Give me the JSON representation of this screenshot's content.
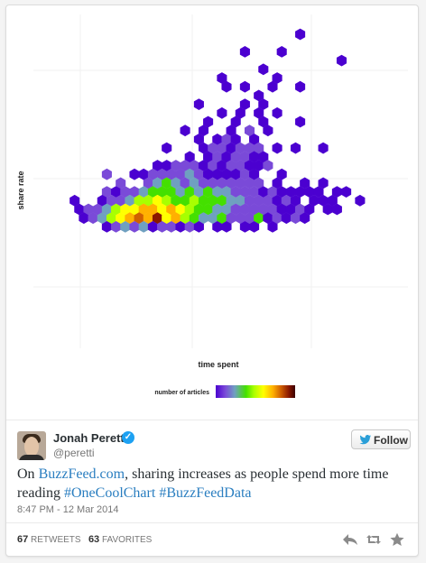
{
  "chart_data": {
    "type": "heatmap",
    "chart_kind": "hexbin",
    "xlabel": "time spent",
    "ylabel": "share rate",
    "legend_title": "number of articles",
    "grid": true,
    "legend_placement": "bottom-center",
    "colorscale": [
      "#4b00d0",
      "#7a4ad8",
      "#6fa0c0",
      "#44e000",
      "#a8ff00",
      "#ffff00",
      "#ffb000",
      "#d06000",
      "#8a1800"
    ],
    "cells": [
      {
        "row": 0,
        "col": 28,
        "level": 0
      },
      {
        "row": 2,
        "col": 22,
        "level": 0
      },
      {
        "row": 2,
        "col": 26,
        "level": 0
      },
      {
        "row": 3,
        "col": 32,
        "level": 0
      },
      {
        "row": 4,
        "col": 24,
        "level": 0
      },
      {
        "row": 5,
        "col": 19,
        "level": 0
      },
      {
        "row": 5,
        "col": 25,
        "level": 0
      },
      {
        "row": 6,
        "col": 20,
        "level": 0
      },
      {
        "row": 6,
        "col": 22,
        "level": 0
      },
      {
        "row": 6,
        "col": 25,
        "level": 0
      },
      {
        "row": 6,
        "col": 28,
        "level": 0
      },
      {
        "row": 7,
        "col": 23,
        "level": 0
      },
      {
        "row": 8,
        "col": 17,
        "level": 0
      },
      {
        "row": 8,
        "col": 22,
        "level": 0
      },
      {
        "row": 8,
        "col": 24,
        "level": 0
      },
      {
        "row": 9,
        "col": 19,
        "level": 0
      },
      {
        "row": 9,
        "col": 21,
        "level": 0
      },
      {
        "row": 9,
        "col": 23,
        "level": 0
      },
      {
        "row": 9,
        "col": 25,
        "level": 0
      },
      {
        "row": 10,
        "col": 18,
        "level": 0
      },
      {
        "row": 10,
        "col": 21,
        "level": 0
      },
      {
        "row": 10,
        "col": 24,
        "level": 0
      },
      {
        "row": 10,
        "col": 28,
        "level": 0
      },
      {
        "row": 11,
        "col": 15,
        "level": 0
      },
      {
        "row": 11,
        "col": 17,
        "level": 0
      },
      {
        "row": 11,
        "col": 20,
        "level": 0
      },
      {
        "row": 11,
        "col": 22,
        "level": 1
      },
      {
        "row": 11,
        "col": 24,
        "level": 0
      },
      {
        "row": 12,
        "col": 17,
        "level": 0
      },
      {
        "row": 12,
        "col": 19,
        "level": 0
      },
      {
        "row": 12,
        "col": 20,
        "level": 1
      },
      {
        "row": 12,
        "col": 21,
        "level": 0
      },
      {
        "row": 12,
        "col": 23,
        "level": 0
      },
      {
        "row": 13,
        "col": 13,
        "level": 0
      },
      {
        "row": 13,
        "col": 17,
        "level": 0
      },
      {
        "row": 13,
        "col": 18,
        "level": 1
      },
      {
        "row": 13,
        "col": 19,
        "level": 1
      },
      {
        "row": 13,
        "col": 20,
        "level": 0
      },
      {
        "row": 13,
        "col": 21,
        "level": 1
      },
      {
        "row": 13,
        "col": 22,
        "level": 1
      },
      {
        "row": 13,
        "col": 23,
        "level": 1
      },
      {
        "row": 13,
        "col": 25,
        "level": 0
      },
      {
        "row": 13,
        "col": 27,
        "level": 0
      },
      {
        "row": 13,
        "col": 30,
        "level": 0
      },
      {
        "row": 14,
        "col": 16,
        "level": 0
      },
      {
        "row": 14,
        "col": 18,
        "level": 0
      },
      {
        "row": 14,
        "col": 19,
        "level": 1
      },
      {
        "row": 14,
        "col": 20,
        "level": 0
      },
      {
        "row": 14,
        "col": 21,
        "level": 1
      },
      {
        "row": 14,
        "col": 22,
        "level": 1
      },
      {
        "row": 14,
        "col": 23,
        "level": 0
      },
      {
        "row": 14,
        "col": 24,
        "level": 0
      },
      {
        "row": 15,
        "col": 12,
        "level": 0
      },
      {
        "row": 15,
        "col": 13,
        "level": 0
      },
      {
        "row": 15,
        "col": 14,
        "level": 1
      },
      {
        "row": 15,
        "col": 15,
        "level": 1
      },
      {
        "row": 15,
        "col": 16,
        "level": 1
      },
      {
        "row": 15,
        "col": 17,
        "level": 0
      },
      {
        "row": 15,
        "col": 18,
        "level": 1
      },
      {
        "row": 15,
        "col": 19,
        "level": 0
      },
      {
        "row": 15,
        "col": 20,
        "level": 1
      },
      {
        "row": 15,
        "col": 21,
        "level": 1
      },
      {
        "row": 15,
        "col": 22,
        "level": 0
      },
      {
        "row": 15,
        "col": 23,
        "level": 0
      },
      {
        "row": 15,
        "col": 24,
        "level": 1
      },
      {
        "row": 16,
        "col": 7,
        "level": 1
      },
      {
        "row": 16,
        "col": 10,
        "level": 0
      },
      {
        "row": 16,
        "col": 11,
        "level": 0
      },
      {
        "row": 16,
        "col": 12,
        "level": 1
      },
      {
        "row": 16,
        "col": 13,
        "level": 1
      },
      {
        "row": 16,
        "col": 14,
        "level": 1
      },
      {
        "row": 16,
        "col": 15,
        "level": 1
      },
      {
        "row": 16,
        "col": 16,
        "level": 2
      },
      {
        "row": 16,
        "col": 17,
        "level": 1
      },
      {
        "row": 16,
        "col": 18,
        "level": 0
      },
      {
        "row": 16,
        "col": 19,
        "level": 0
      },
      {
        "row": 16,
        "col": 20,
        "level": 0
      },
      {
        "row": 16,
        "col": 21,
        "level": 0
      },
      {
        "row": 16,
        "col": 22,
        "level": 1
      },
      {
        "row": 16,
        "col": 23,
        "level": 0
      },
      {
        "row": 16,
        "col": 26,
        "level": 0
      },
      {
        "row": 17,
        "col": 8,
        "level": 1
      },
      {
        "row": 17,
        "col": 11,
        "level": 1
      },
      {
        "row": 17,
        "col": 12,
        "level": 2
      },
      {
        "row": 17,
        "col": 13,
        "level": 3
      },
      {
        "row": 17,
        "col": 14,
        "level": 2
      },
      {
        "row": 17,
        "col": 15,
        "level": 1
      },
      {
        "row": 17,
        "col": 16,
        "level": 2
      },
      {
        "row": 17,
        "col": 17,
        "level": 1
      },
      {
        "row": 17,
        "col": 18,
        "level": 1
      },
      {
        "row": 17,
        "col": 19,
        "level": 1
      },
      {
        "row": 17,
        "col": 20,
        "level": 1
      },
      {
        "row": 17,
        "col": 21,
        "level": 1
      },
      {
        "row": 17,
        "col": 22,
        "level": 1
      },
      {
        "row": 17,
        "col": 23,
        "level": 1
      },
      {
        "row": 17,
        "col": 25,
        "level": 0
      },
      {
        "row": 17,
        "col": 28,
        "level": 0
      },
      {
        "row": 17,
        "col": 30,
        "level": 0
      },
      {
        "row": 18,
        "col": 7,
        "level": 1
      },
      {
        "row": 18,
        "col": 8,
        "level": 0
      },
      {
        "row": 18,
        "col": 9,
        "level": 1
      },
      {
        "row": 18,
        "col": 10,
        "level": 1
      },
      {
        "row": 18,
        "col": 11,
        "level": 2
      },
      {
        "row": 18,
        "col": 12,
        "level": 3
      },
      {
        "row": 18,
        "col": 13,
        "level": 3
      },
      {
        "row": 18,
        "col": 14,
        "level": 3
      },
      {
        "row": 18,
        "col": 15,
        "level": 2
      },
      {
        "row": 18,
        "col": 16,
        "level": 3
      },
      {
        "row": 18,
        "col": 17,
        "level": 2
      },
      {
        "row": 18,
        "col": 18,
        "level": 3
      },
      {
        "row": 18,
        "col": 19,
        "level": 2
      },
      {
        "row": 18,
        "col": 20,
        "level": 2
      },
      {
        "row": 18,
        "col": 21,
        "level": 1
      },
      {
        "row": 18,
        "col": 22,
        "level": 1
      },
      {
        "row": 18,
        "col": 23,
        "level": 1
      },
      {
        "row": 18,
        "col": 24,
        "level": 0
      },
      {
        "row": 18,
        "col": 25,
        "level": 1
      },
      {
        "row": 18,
        "col": 26,
        "level": 0
      },
      {
        "row": 18,
        "col": 27,
        "level": 0
      },
      {
        "row": 18,
        "col": 28,
        "level": 0
      },
      {
        "row": 18,
        "col": 29,
        "level": 0
      },
      {
        "row": 18,
        "col": 30,
        "level": 0
      },
      {
        "row": 18,
        "col": 32,
        "level": 0
      },
      {
        "row": 18,
        "col": 33,
        "level": 0
      },
      {
        "row": 19,
        "col": 3,
        "level": 0
      },
      {
        "row": 19,
        "col": 6,
        "level": 0
      },
      {
        "row": 19,
        "col": 7,
        "level": 1
      },
      {
        "row": 19,
        "col": 8,
        "level": 1
      },
      {
        "row": 19,
        "col": 9,
        "level": 2
      },
      {
        "row": 19,
        "col": 10,
        "level": 4
      },
      {
        "row": 19,
        "col": 11,
        "level": 4
      },
      {
        "row": 19,
        "col": 12,
        "level": 5
      },
      {
        "row": 19,
        "col": 13,
        "level": 4
      },
      {
        "row": 19,
        "col": 14,
        "level": 3
      },
      {
        "row": 19,
        "col": 15,
        "level": 3
      },
      {
        "row": 19,
        "col": 16,
        "level": 4
      },
      {
        "row": 19,
        "col": 17,
        "level": 3
      },
      {
        "row": 19,
        "col": 18,
        "level": 3
      },
      {
        "row": 19,
        "col": 19,
        "level": 3
      },
      {
        "row": 19,
        "col": 20,
        "level": 2
      },
      {
        "row": 19,
        "col": 21,
        "level": 2
      },
      {
        "row": 19,
        "col": 22,
        "level": 1
      },
      {
        "row": 19,
        "col": 23,
        "level": 1
      },
      {
        "row": 19,
        "col": 24,
        "level": 1
      },
      {
        "row": 19,
        "col": 25,
        "level": 0
      },
      {
        "row": 19,
        "col": 26,
        "level": 1
      },
      {
        "row": 19,
        "col": 27,
        "level": 0
      },
      {
        "row": 19,
        "col": 29,
        "level": 0
      },
      {
        "row": 19,
        "col": 30,
        "level": 0
      },
      {
        "row": 19,
        "col": 31,
        "level": 0
      },
      {
        "row": 19,
        "col": 34,
        "level": 0
      },
      {
        "row": 20,
        "col": 4,
        "level": 0
      },
      {
        "row": 20,
        "col": 5,
        "level": 1
      },
      {
        "row": 20,
        "col": 6,
        "level": 1
      },
      {
        "row": 20,
        "col": 7,
        "level": 2
      },
      {
        "row": 20,
        "col": 8,
        "level": 4
      },
      {
        "row": 20,
        "col": 9,
        "level": 5
      },
      {
        "row": 20,
        "col": 10,
        "level": 5
      },
      {
        "row": 20,
        "col": 11,
        "level": 6
      },
      {
        "row": 20,
        "col": 12,
        "level": 6
      },
      {
        "row": 20,
        "col": 13,
        "level": 5
      },
      {
        "row": 20,
        "col": 14,
        "level": 6
      },
      {
        "row": 20,
        "col": 15,
        "level": 5
      },
      {
        "row": 20,
        "col": 16,
        "level": 4
      },
      {
        "row": 20,
        "col": 17,
        "level": 3
      },
      {
        "row": 20,
        "col": 18,
        "level": 3
      },
      {
        "row": 20,
        "col": 19,
        "level": 2
      },
      {
        "row": 20,
        "col": 20,
        "level": 2
      },
      {
        "row": 20,
        "col": 21,
        "level": 1
      },
      {
        "row": 20,
        "col": 22,
        "level": 1
      },
      {
        "row": 20,
        "col": 23,
        "level": 1
      },
      {
        "row": 20,
        "col": 24,
        "level": 1
      },
      {
        "row": 20,
        "col": 25,
        "level": 1
      },
      {
        "row": 20,
        "col": 26,
        "level": 0
      },
      {
        "row": 20,
        "col": 27,
        "level": 0
      },
      {
        "row": 20,
        "col": 28,
        "level": 1
      },
      {
        "row": 20,
        "col": 29,
        "level": 0
      },
      {
        "row": 20,
        "col": 31,
        "level": 0
      },
      {
        "row": 20,
        "col": 32,
        "level": 0
      },
      {
        "row": 21,
        "col": 4,
        "level": 0
      },
      {
        "row": 21,
        "col": 5,
        "level": 1
      },
      {
        "row": 21,
        "col": 6,
        "level": 2
      },
      {
        "row": 21,
        "col": 7,
        "level": 4
      },
      {
        "row": 21,
        "col": 8,
        "level": 5
      },
      {
        "row": 21,
        "col": 9,
        "level": 6
      },
      {
        "row": 21,
        "col": 10,
        "level": 7
      },
      {
        "row": 21,
        "col": 11,
        "level": 6
      },
      {
        "row": 21,
        "col": 12,
        "level": 8
      },
      {
        "row": 21,
        "col": 13,
        "level": 5
      },
      {
        "row": 21,
        "col": 14,
        "level": 6
      },
      {
        "row": 21,
        "col": 15,
        "level": 4
      },
      {
        "row": 21,
        "col": 16,
        "level": 3
      },
      {
        "row": 21,
        "col": 17,
        "level": 2
      },
      {
        "row": 21,
        "col": 18,
        "level": 2
      },
      {
        "row": 21,
        "col": 19,
        "level": 3
      },
      {
        "row": 21,
        "col": 20,
        "level": 1
      },
      {
        "row": 21,
        "col": 21,
        "level": 1
      },
      {
        "row": 21,
        "col": 22,
        "level": 1
      },
      {
        "row": 21,
        "col": 23,
        "level": 3
      },
      {
        "row": 21,
        "col": 24,
        "level": 0
      },
      {
        "row": 21,
        "col": 25,
        "level": 1
      },
      {
        "row": 21,
        "col": 26,
        "level": 0
      },
      {
        "row": 21,
        "col": 27,
        "level": 1
      },
      {
        "row": 21,
        "col": 28,
        "level": 0
      },
      {
        "row": 22,
        "col": 7,
        "level": 0
      },
      {
        "row": 22,
        "col": 8,
        "level": 1
      },
      {
        "row": 22,
        "col": 9,
        "level": 2
      },
      {
        "row": 22,
        "col": 10,
        "level": 1
      },
      {
        "row": 22,
        "col": 11,
        "level": 2
      },
      {
        "row": 22,
        "col": 12,
        "level": 0
      },
      {
        "row": 22,
        "col": 13,
        "level": 1
      },
      {
        "row": 22,
        "col": 14,
        "level": 1
      },
      {
        "row": 22,
        "col": 15,
        "level": 0
      },
      {
        "row": 22,
        "col": 16,
        "level": 1
      },
      {
        "row": 22,
        "col": 17,
        "level": 0
      },
      {
        "row": 22,
        "col": 19,
        "level": 0
      },
      {
        "row": 22,
        "col": 20,
        "level": 0
      },
      {
        "row": 22,
        "col": 22,
        "level": 0
      },
      {
        "row": 22,
        "col": 23,
        "level": 0
      },
      {
        "row": 22,
        "col": 25,
        "level": 0
      }
    ]
  },
  "tweet": {
    "author_name": "Jonah Peretti",
    "verified_mark": "✓",
    "handle": "@peretti",
    "follow_label": "Follow",
    "text_link": "BuzzFeed.com",
    "text_after_link": ", sharing increases as people spend more time reading ",
    "hashtag_1": "#OneCoolChart",
    "hashtag_2": "#BuzzFeedData",
    "text_prefix": "On ",
    "timestamp": "8:47 PM - 12 Mar 2014",
    "retweets_count": "67",
    "retweets_label": "RETWEETS",
    "favorites_count": "63",
    "favorites_label": "FAVORITES"
  },
  "icons": {
    "reply": "reply-icon",
    "retweet": "retweet-icon",
    "favorite": "star-icon",
    "follow": "twitter-bird-icon",
    "verified": "verified-badge-icon"
  },
  "colors": {
    "link": "#2a7ec0",
    "verified": "#1da1f2"
  }
}
